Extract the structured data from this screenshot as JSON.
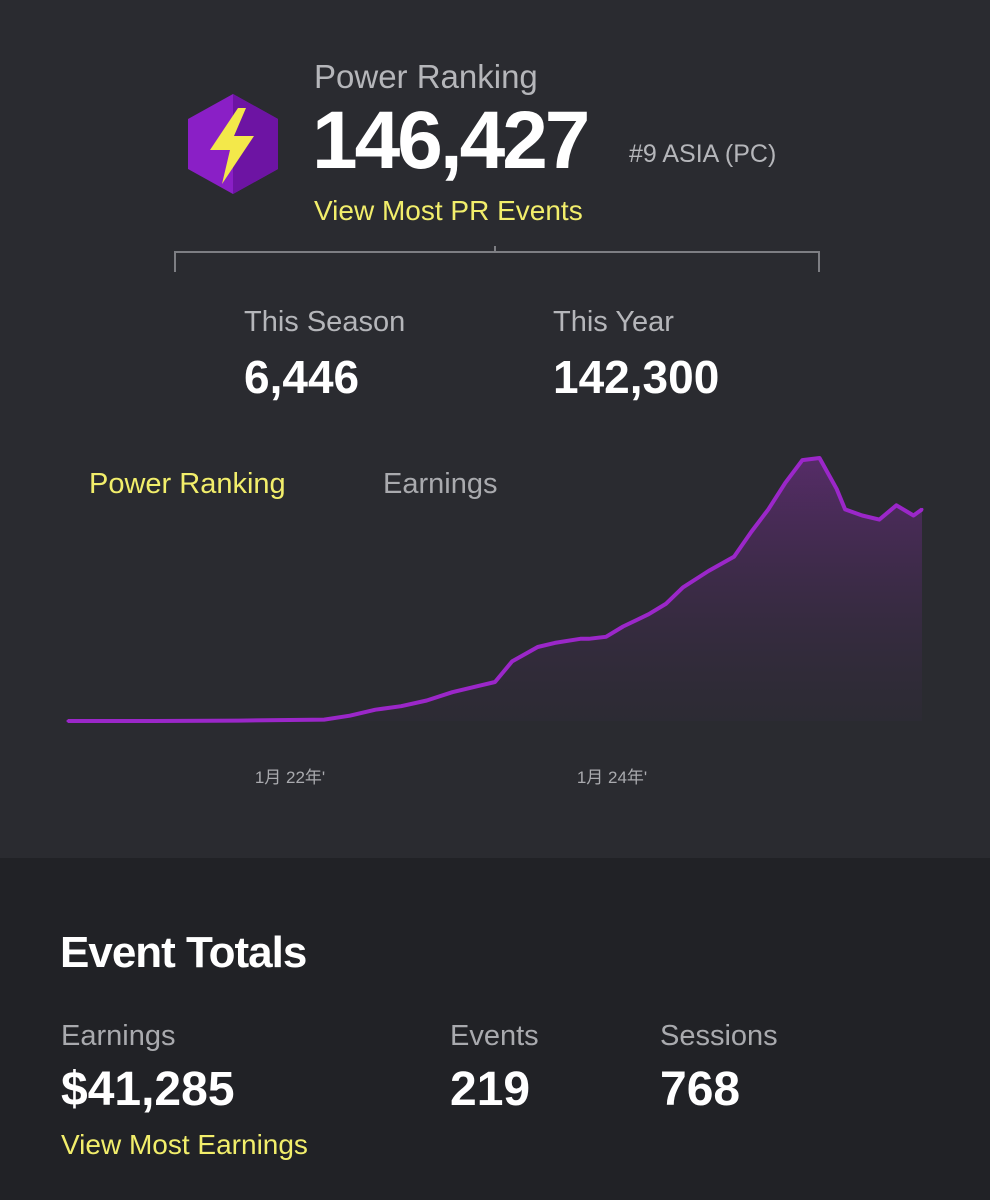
{
  "power_ranking": {
    "label": "Power Ranking",
    "value": "146,427",
    "rank": "#9 ASIA (PC)",
    "link": "View Most PR Events",
    "icon": "lightning-hexagon-icon"
  },
  "stats": {
    "season_label": "This Season",
    "season_value": "6,446",
    "year_label": "This Year",
    "year_value": "142,300"
  },
  "tabs": [
    {
      "label": "Power Ranking",
      "active": true
    },
    {
      "label": "Earnings",
      "active": false
    }
  ],
  "chart_data": {
    "type": "area",
    "x_tick_labels": [
      "1月 22年'",
      "1月 24年'"
    ],
    "x": [
      0,
      0.1,
      0.2,
      0.3,
      0.33,
      0.36,
      0.39,
      0.42,
      0.45,
      0.48,
      0.5,
      0.52,
      0.55,
      0.57,
      0.6,
      0.61,
      0.63,
      0.65,
      0.68,
      0.7,
      0.72,
      0.75,
      0.78,
      0.8,
      0.82,
      0.84,
      0.86,
      0.88,
      0.9,
      0.91,
      0.93,
      0.95,
      0.97,
      0.99,
      1.0
    ],
    "values": [
      0,
      0,
      200,
      700,
      2600,
      5500,
      7200,
      10000,
      14000,
      17000,
      19000,
      29000,
      36000,
      38000,
      40000,
      40000,
      41000,
      46000,
      52000,
      57000,
      65000,
      73000,
      80000,
      92000,
      103000,
      116000,
      127000,
      128000,
      113000,
      103000,
      100000,
      98000,
      105000,
      100000,
      103000
    ],
    "color": "#9b27c9"
  },
  "totals": {
    "title": "Event Totals",
    "earnings_label": "Earnings",
    "earnings_value": "$41,285",
    "events_label": "Events",
    "events_value": "219",
    "sessions_label": "Sessions",
    "sessions_value": "768",
    "link": "View Most Earnings"
  },
  "colors": {
    "accent_yellow": "#f2ee6b",
    "purple": "#9b27c9",
    "background": "#2a2b30",
    "background_dark": "#212226"
  }
}
